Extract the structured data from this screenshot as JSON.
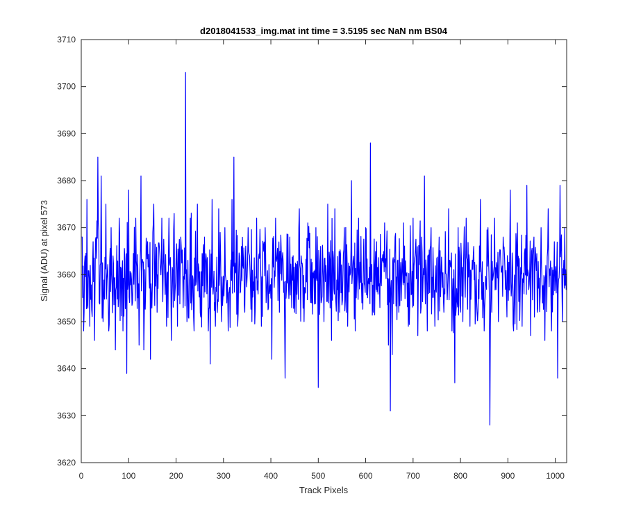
{
  "chart_data": {
    "type": "line",
    "title": "d2018041533_img.mat int time = 3.5195 sec  NaN nm BS04",
    "xlabel": "Track Pixels",
    "ylabel": "Signal (ADU) at pixel 573",
    "xlim": [
      0,
      1024
    ],
    "ylim": [
      3620,
      3710
    ],
    "xticks": [
      0,
      100,
      200,
      300,
      400,
      500,
      600,
      700,
      800,
      900,
      1000
    ],
    "yticks": [
      3620,
      3630,
      3640,
      3650,
      3660,
      3670,
      3680,
      3690,
      3700,
      3710
    ],
    "grid": false,
    "legend": "none",
    "line_color": "#0000ff",
    "series": [
      {
        "x_start": 1,
        "x_step": 1,
        "n_points": 1024,
        "baseline": 3660,
        "noise_range": [
          3646,
          3674
        ],
        "anchor_points": [
          [
            2,
            3668
          ],
          [
            5,
            3648
          ],
          [
            8,
            3664
          ],
          [
            12,
            3676
          ],
          [
            18,
            3649
          ],
          [
            25,
            3667
          ],
          [
            28,
            3646
          ],
          [
            35,
            3685
          ],
          [
            38,
            3654
          ],
          [
            42,
            3681
          ],
          [
            46,
            3650
          ],
          [
            52,
            3675
          ],
          [
            58,
            3648
          ],
          [
            63,
            3670
          ],
          [
            72,
            3644
          ],
          [
            80,
            3672
          ],
          [
            88,
            3648
          ],
          [
            96,
            3639
          ],
          [
            100,
            3678
          ],
          [
            108,
            3654
          ],
          [
            115,
            3672
          ],
          [
            122,
            3645
          ],
          [
            126,
            3681
          ],
          [
            132,
            3644
          ],
          [
            140,
            3667
          ],
          [
            146,
            3642
          ],
          [
            153,
            3675
          ],
          [
            160,
            3652
          ],
          [
            170,
            3672
          ],
          [
            180,
            3649
          ],
          [
            185,
            3672
          ],
          [
            190,
            3646
          ],
          [
            196,
            3673
          ],
          [
            203,
            3649
          ],
          [
            210,
            3668
          ],
          [
            215,
            3653
          ],
          [
            220,
            3703
          ],
          [
            223,
            3650
          ],
          [
            230,
            3672
          ],
          [
            238,
            3648
          ],
          [
            245,
            3675
          ],
          [
            252,
            3651
          ],
          [
            260,
            3668
          ],
          [
            268,
            3648
          ],
          [
            272,
            3641
          ],
          [
            276,
            3676
          ],
          [
            283,
            3649
          ],
          [
            290,
            3674
          ],
          [
            296,
            3650
          ],
          [
            303,
            3670
          ],
          [
            310,
            3648
          ],
          [
            318,
            3676
          ],
          [
            322,
            3685
          ],
          [
            330,
            3649
          ],
          [
            338,
            3666
          ],
          [
            345,
            3652
          ],
          [
            352,
            3670
          ],
          [
            360,
            3650
          ],
          [
            370,
            3672
          ],
          [
            380,
            3649
          ],
          [
            388,
            3670
          ],
          [
            395,
            3653
          ],
          [
            402,
            3642
          ],
          [
            410,
            3672
          ],
          [
            418,
            3652
          ],
          [
            430,
            3638
          ],
          [
            440,
            3668
          ],
          [
            450,
            3652
          ],
          [
            460,
            3674
          ],
          [
            470,
            3650
          ],
          [
            478,
            3671
          ],
          [
            486,
            3654
          ],
          [
            495,
            3670
          ],
          [
            500,
            3636
          ],
          [
            505,
            3666
          ],
          [
            512,
            3650
          ],
          [
            520,
            3675
          ],
          [
            528,
            3646
          ],
          [
            535,
            3674
          ],
          [
            545,
            3652
          ],
          [
            555,
            3670
          ],
          [
            562,
            3649
          ],
          [
            570,
            3680
          ],
          [
            578,
            3648
          ],
          [
            585,
            3672
          ],
          [
            592,
            3654
          ],
          [
            600,
            3670
          ],
          [
            610,
            3688
          ],
          [
            616,
            3652
          ],
          [
            623,
            3667
          ],
          [
            630,
            3653
          ],
          [
            640,
            3671
          ],
          [
            648,
            3645
          ],
          [
            652,
            3631
          ],
          [
            656,
            3643
          ],
          [
            662,
            3668
          ],
          [
            670,
            3652
          ],
          [
            680,
            3671
          ],
          [
            690,
            3649
          ],
          [
            700,
            3672
          ],
          [
            710,
            3647
          ],
          [
            718,
            3668
          ],
          [
            724,
            3681
          ],
          [
            730,
            3648
          ],
          [
            738,
            3670
          ],
          [
            746,
            3649
          ],
          [
            755,
            3668
          ],
          [
            765,
            3652
          ],
          [
            775,
            3674
          ],
          [
            782,
            3648
          ],
          [
            788,
            3637
          ],
          [
            795,
            3670
          ],
          [
            805,
            3650
          ],
          [
            812,
            3672
          ],
          [
            820,
            3649
          ],
          [
            828,
            3666
          ],
          [
            835,
            3652
          ],
          [
            842,
            3676
          ],
          [
            850,
            3648
          ],
          [
            858,
            3670
          ],
          [
            862,
            3628
          ],
          [
            866,
            3652
          ],
          [
            872,
            3672
          ],
          [
            880,
            3650
          ],
          [
            890,
            3668
          ],
          [
            898,
            3651
          ],
          [
            905,
            3678
          ],
          [
            912,
            3648
          ],
          [
            920,
            3671
          ],
          [
            930,
            3649
          ],
          [
            940,
            3679
          ],
          [
            948,
            3647
          ],
          [
            955,
            3668
          ],
          [
            962,
            3652
          ],
          [
            970,
            3670
          ],
          [
            978,
            3646
          ],
          [
            985,
            3674
          ],
          [
            992,
            3648
          ],
          [
            998,
            3667
          ],
          [
            1005,
            3638
          ],
          [
            1010,
            3679
          ],
          [
            1015,
            3650
          ],
          [
            1020,
            3670
          ],
          [
            1024,
            3658
          ]
        ]
      }
    ]
  }
}
